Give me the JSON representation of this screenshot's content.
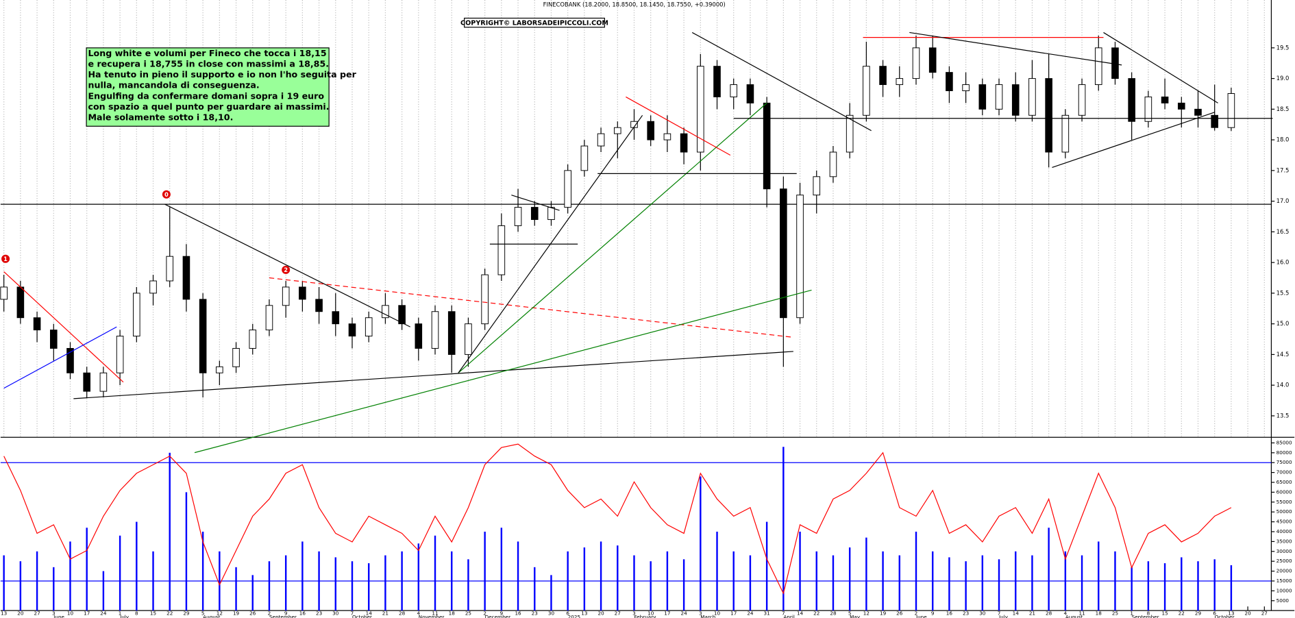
{
  "chart_data": {
    "type": "candlestick",
    "title": "FINECOBANK (18.2000, 18.8500, 18.1450, 18.7550, +0.39000)",
    "copyright": "COPYRIGHT© LABORSADEIPICCOLI.COM",
    "annotation": [
      "Long white e volumi per Fineco che tocca i 18,15",
      "e recupera i 18,755 in close con massimi a 18,85.",
      "Ha tenuto in pieno il supporto e io non l'ho seguita per",
      "nulla, mancandola di conseguenza.",
      "Engulfing da confermare domani sopra  i 19 euro",
      "con spazio a quel punto per guardare ai massimi.",
      "Male solamente sotto i 18,10."
    ],
    "x": [
      "13",
      "20",
      "27",
      "3",
      "10",
      "17",
      "24",
      "1",
      "8",
      "15",
      "22",
      "29",
      "5",
      "12",
      "19",
      "26",
      "2",
      "9",
      "16",
      "23",
      "30",
      "7",
      "14",
      "21",
      "28",
      "4",
      "11",
      "18",
      "25",
      "2",
      "9",
      "16",
      "23",
      "30",
      "6",
      "13",
      "20",
      "27",
      "3",
      "10",
      "17",
      "24",
      "3",
      "10",
      "17",
      "24",
      "31",
      "7",
      "14",
      "22",
      "28",
      "5",
      "12",
      "19",
      "26",
      "2",
      "9",
      "16",
      "23",
      "30",
      "7",
      "14",
      "21",
      "28",
      "4",
      "11",
      "18",
      "25",
      "1",
      "8",
      "15",
      "22",
      "29",
      "6",
      "13",
      "20",
      "27"
    ],
    "months": [
      {
        "value": 3,
        "label": "June"
      },
      {
        "value": 7,
        "label": "July"
      },
      {
        "value": 12,
        "label": "August"
      },
      {
        "value": 16,
        "label": "September"
      },
      {
        "value": 21,
        "label": "October"
      },
      {
        "value": 25,
        "label": "November"
      },
      {
        "value": 29,
        "label": "December"
      },
      {
        "value": 34,
        "label": "2025"
      },
      {
        "value": 38,
        "label": "February"
      },
      {
        "value": 42,
        "label": "March"
      },
      {
        "value": 47,
        "label": "April"
      },
      {
        "value": 51,
        "label": "May"
      },
      {
        "value": 55,
        "label": "June"
      },
      {
        "value": 60,
        "label": "July"
      },
      {
        "value": 64,
        "label": "August"
      },
      {
        "value": 68,
        "label": "September"
      },
      {
        "value": 73,
        "label": "October"
      }
    ],
    "open": [
      15.4,
      15.6,
      15.1,
      14.9,
      14.6,
      14.2,
      13.9,
      14.2,
      14.8,
      15.5,
      15.7,
      16.1,
      15.4,
      14.2,
      14.3,
      14.6,
      14.9,
      15.3,
      15.6,
      15.4,
      15.2,
      15.0,
      14.8,
      15.1,
      15.3,
      15.0,
      14.6,
      15.2,
      14.5,
      15.0,
      15.8,
      16.6,
      16.9,
      16.7,
      16.9,
      17.5,
      17.9,
      18.1,
      18.2,
      18.3,
      18.0,
      18.1,
      17.8,
      19.2,
      18.7,
      18.9,
      18.6,
      17.2,
      15.1,
      17.1,
      17.4,
      17.8,
      18.4,
      19.2,
      18.9,
      19.0,
      19.5,
      19.1,
      18.8,
      18.9,
      18.5,
      18.9,
      18.4,
      19.0,
      17.8,
      18.4,
      18.9,
      19.5,
      19.0,
      18.3,
      18.7,
      18.6,
      18.5,
      18.4,
      18.2,
      null,
      null
    ],
    "high": [
      15.8,
      15.7,
      15.2,
      15.0,
      14.7,
      14.3,
      14.3,
      14.9,
      15.6,
      15.8,
      16.9,
      16.3,
      15.5,
      14.4,
      14.7,
      15.0,
      15.4,
      15.7,
      15.7,
      15.6,
      15.5,
      15.1,
      15.2,
      15.5,
      15.4,
      15.1,
      15.3,
      15.3,
      15.1,
      15.9,
      16.8,
      17.2,
      17.0,
      17.0,
      17.6,
      18.0,
      18.2,
      18.3,
      18.5,
      18.4,
      18.4,
      18.2,
      19.4,
      19.3,
      19.0,
      19.0,
      18.7,
      17.4,
      17.3,
      17.5,
      17.9,
      18.6,
      19.6,
      19.3,
      19.2,
      19.7,
      19.7,
      19.2,
      19.1,
      19.0,
      19.0,
      19.1,
      19.3,
      19.4,
      18.5,
      19.0,
      19.7,
      19.6,
      19.1,
      18.8,
      19.0,
      18.7,
      18.8,
      18.9,
      18.85,
      null,
      null
    ],
    "low": [
      15.2,
      15.0,
      14.7,
      14.4,
      14.1,
      13.8,
      13.8,
      14.0,
      14.7,
      15.3,
      15.6,
      15.2,
      13.8,
      14.0,
      14.2,
      14.5,
      14.8,
      15.1,
      15.2,
      15.0,
      14.8,
      14.6,
      14.7,
      15.0,
      14.9,
      14.4,
      14.5,
      14.2,
      14.3,
      14.9,
      15.7,
      16.5,
      16.6,
      16.6,
      16.8,
      17.4,
      17.8,
      17.7,
      18.0,
      17.9,
      17.8,
      17.6,
      17.5,
      18.5,
      18.5,
      18.4,
      16.9,
      14.3,
      15.0,
      16.8,
      17.3,
      17.7,
      18.3,
      18.7,
      18.7,
      18.9,
      19.0,
      18.6,
      18.6,
      18.4,
      18.4,
      18.3,
      18.3,
      17.55,
      17.7,
      18.3,
      18.8,
      18.9,
      18.0,
      18.2,
      18.5,
      18.2,
      18.2,
      18.15,
      18.145,
      null,
      null
    ],
    "close": [
      15.6,
      15.1,
      14.9,
      14.6,
      14.2,
      13.9,
      14.2,
      14.8,
      15.5,
      15.7,
      16.1,
      15.4,
      14.2,
      14.3,
      14.6,
      14.9,
      15.3,
      15.6,
      15.4,
      15.2,
      15.0,
      14.8,
      15.1,
      15.3,
      15.0,
      14.6,
      15.2,
      14.5,
      15.0,
      15.8,
      16.6,
      16.9,
      16.7,
      16.9,
      17.5,
      17.9,
      18.1,
      18.2,
      18.3,
      18.0,
      18.1,
      17.8,
      19.2,
      18.7,
      18.9,
      18.6,
      17.2,
      15.1,
      17.1,
      17.4,
      17.8,
      18.4,
      19.2,
      18.9,
      19.0,
      19.5,
      19.1,
      18.8,
      18.9,
      18.5,
      18.9,
      18.4,
      19.0,
      17.8,
      18.4,
      18.9,
      19.5,
      19.0,
      18.3,
      18.7,
      18.6,
      18.5,
      18.4,
      18.2,
      18.755,
      null,
      null
    ],
    "up_color": "#ffffff",
    "down_color": "#000000",
    "ylim": [
      13.15,
      20.28
    ],
    "yticks": [
      13.5,
      {
        "value": 14,
        "label": "14.0"
      },
      14.5,
      {
        "value": 15,
        "label": "15.0"
      },
      15.5,
      {
        "value": 16,
        "label": "16.0"
      },
      16.5,
      {
        "value": 17,
        "label": "17.0"
      },
      17.5,
      {
        "value": 18,
        "label": "18.0"
      },
      18.5,
      {
        "value": 19,
        "label": "19.0"
      },
      19.5
    ],
    "grid": true,
    "hline": {
      "value": 16.95,
      "color": "#000000"
    },
    "trendlines": [
      {
        "color": "#ff0000",
        "points": [
          [
            0,
            15.85
          ],
          [
            7.2,
            14.05
          ]
        ]
      },
      {
        "color": "#0000ff",
        "points": [
          [
            0,
            13.95
          ],
          [
            6.8,
            14.95
          ]
        ]
      },
      {
        "color": "#000000",
        "points": [
          [
            4.2,
            13.78
          ],
          [
            47.6,
            14.55
          ]
        ]
      },
      {
        "color": "#000000",
        "points": [
          [
            9.7,
            16.95
          ],
          [
            24.5,
            14.95
          ]
        ]
      },
      {
        "color": "#ff0000",
        "dashed": true,
        "points": [
          [
            16,
            15.75
          ],
          [
            47.6,
            14.78
          ]
        ]
      },
      {
        "color": "#008000",
        "points": [
          [
            11.5,
            12.9
          ],
          [
            48.7,
            15.55
          ]
        ]
      },
      {
        "color": "#008000",
        "points": [
          [
            27.4,
            14.2
          ],
          [
            46,
            18.6
          ]
        ]
      },
      {
        "color": "#000000",
        "points": [
          [
            27.4,
            14.2
          ],
          [
            38.5,
            18.4
          ]
        ]
      },
      {
        "color": "#000000",
        "points": [
          [
            29.3,
            16.3
          ],
          [
            34.6,
            16.3
          ]
        ]
      },
      {
        "color": "#000000",
        "points": [
          [
            30.6,
            17.1
          ],
          [
            33.5,
            16.85
          ]
        ]
      },
      {
        "color": "#000000",
        "points": [
          [
            35.8,
            17.45
          ],
          [
            47.8,
            17.45
          ]
        ]
      },
      {
        "color": "#ff0000",
        "points": [
          [
            37.5,
            18.7
          ],
          [
            43.8,
            17.75
          ]
        ]
      },
      {
        "color": "#000000",
        "points": [
          [
            41.5,
            19.75
          ],
          [
            52.3,
            18.15
          ]
        ]
      },
      {
        "color": "#000000",
        "points": [
          [
            44,
            18.35
          ],
          [
            76.5,
            18.35
          ]
        ]
      },
      {
        "color": "#ff0000",
        "points": [
          [
            51.8,
            19.67
          ],
          [
            66.3,
            19.67
          ]
        ]
      },
      {
        "color": "#000000",
        "points": [
          [
            54.6,
            19.75
          ],
          [
            67.4,
            19.22
          ]
        ]
      },
      {
        "color": "#000000",
        "points": [
          [
            66.3,
            19.75
          ],
          [
            73.2,
            18.6
          ]
        ]
      },
      {
        "color": "#000000",
        "points": [
          [
            63.2,
            17.55
          ],
          [
            73,
            18.45
          ]
        ]
      }
    ],
    "markers": [
      {
        "text": "1",
        "x": 0.1,
        "y": 16.06
      },
      {
        "text": "0",
        "x": 9.8,
        "y": 17.11
      },
      {
        "text": "2",
        "x": 17,
        "y": 15.88
      }
    ],
    "volume": {
      "values": [
        28000,
        25000,
        30000,
        22000,
        35000,
        42000,
        20000,
        38000,
        45000,
        30000,
        80000,
        60000,
        40000,
        30000,
        22000,
        18000,
        25000,
        28000,
        35000,
        30000,
        27000,
        25000,
        24000,
        28000,
        30000,
        34000,
        38000,
        30000,
        26000,
        40000,
        42000,
        35000,
        22000,
        18000,
        30000,
        32000,
        35000,
        33000,
        28000,
        25000,
        30000,
        26000,
        68000,
        40000,
        30000,
        28000,
        45000,
        83000,
        40000,
        30000,
        28000,
        32000,
        37000,
        30000,
        28000,
        40000,
        30000,
        27000,
        25000,
        28000,
        26000,
        30000,
        28000,
        42000,
        30000,
        28000,
        35000,
        30000,
        22000,
        25000,
        24000,
        27000,
        25000,
        26000,
        23000,
        null,
        null
      ],
      "color": "#0000ff",
      "ylim": [
        0,
        87000
      ],
      "yticks": [
        5000,
        10000,
        15000,
        20000,
        25000,
        30000,
        35000,
        40000,
        45000,
        50000,
        55000,
        60000,
        65000,
        70000,
        75000,
        80000,
        85000
      ],
      "hlines": [
        75000,
        15000
      ]
    },
    "oscillator": {
      "values": [
        90,
        70,
        45,
        50,
        30,
        35,
        55,
        70,
        80,
        85,
        90,
        80,
        40,
        15,
        35,
        55,
        65,
        80,
        85,
        60,
        45,
        40,
        55,
        50,
        45,
        35,
        55,
        40,
        60,
        85,
        95,
        97,
        90,
        85,
        70,
        60,
        65,
        55,
        75,
        60,
        50,
        45,
        80,
        65,
        55,
        60,
        30,
        10,
        50,
        45,
        65,
        70,
        80,
        92,
        60,
        55,
        70,
        45,
        50,
        40,
        55,
        60,
        45,
        65,
        30,
        55,
        80,
        60,
        25,
        45,
        50,
        40,
        45,
        55,
        60,
        null,
        null
      ],
      "color": "#ff0000",
      "ylim": [
        0,
        100
      ]
    }
  }
}
